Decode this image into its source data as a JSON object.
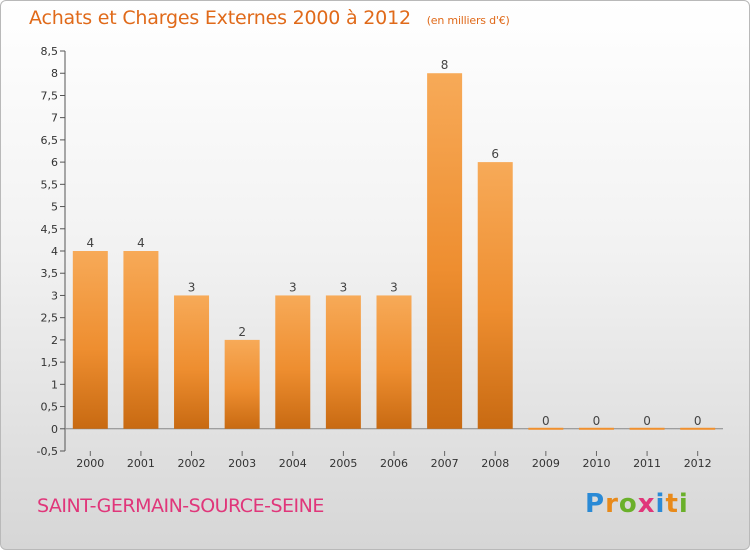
{
  "header": {
    "title": "Achats et Charges Externes 2000 à 2012",
    "subtitle": "(en milliers d'€)"
  },
  "footer": {
    "commune": "SAINT-GERMAIN-SOURCE-SEINE",
    "logo": {
      "letters": [
        "P",
        "r",
        "o",
        "x",
        "i",
        "t",
        "i"
      ],
      "colors": [
        "#2a8ad6",
        "#e88a1a",
        "#6ab02a",
        "#e0367a",
        "#2a8ad6",
        "#e88a1a",
        "#6ab02a"
      ]
    }
  },
  "chart_data": {
    "type": "bar",
    "title": "Achats et Charges Externes 2000 à 2012",
    "subtitle": "(en milliers d'€)",
    "categories": [
      "2000",
      "2001",
      "2002",
      "2003",
      "2004",
      "2005",
      "2006",
      "2007",
      "2008",
      "2009",
      "2010",
      "2011",
      "2012"
    ],
    "values": [
      4,
      4,
      3,
      2,
      3,
      3,
      3,
      8,
      6,
      0,
      0,
      0,
      0
    ],
    "data_labels": [
      "4",
      "4",
      "3",
      "2",
      "3",
      "3",
      "3",
      "8",
      "6",
      "0",
      "0",
      "0",
      "0"
    ],
    "ylim": [
      -0.5,
      8.5
    ],
    "yticks": [
      -0.5,
      0,
      0.5,
      1,
      1.5,
      2,
      2.5,
      3,
      3.5,
      4,
      4.5,
      5,
      5.5,
      6,
      6.5,
      7,
      7.5,
      8,
      8.5
    ],
    "ytick_labels": [
      "-0,5",
      "0",
      "0,5",
      "1",
      "1,5",
      "2",
      "2,5",
      "3",
      "3,5",
      "4",
      "4,5",
      "5",
      "5,5",
      "6",
      "6,5",
      "7",
      "7,5",
      "8",
      "8,5"
    ],
    "xlabel": "",
    "ylabel": "",
    "grid": false,
    "colors": {
      "bar": "#f0902e",
      "bar_light": "#f7aa58",
      "bar_dark": "#c86a12",
      "label": "#444444"
    }
  }
}
